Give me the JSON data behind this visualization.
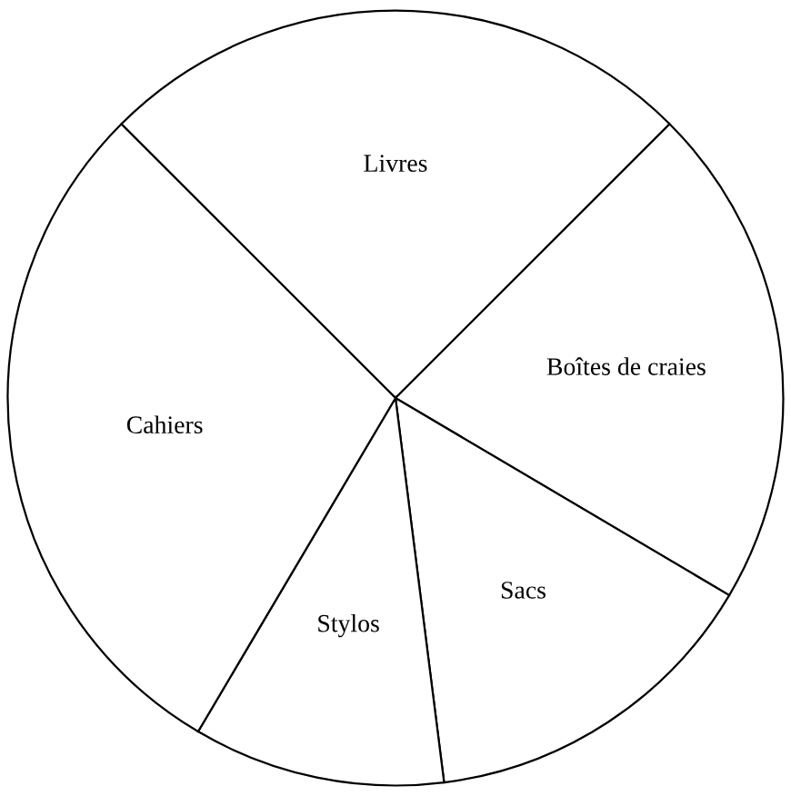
{
  "chart_data": {
    "type": "pie",
    "categories": [
      "Livres",
      "Boîtes de craies",
      "Sacs",
      "Stylos",
      "Cahiers"
    ],
    "values": [
      25,
      21,
      14.5,
      10.5,
      29
    ],
    "colors": [
      "#ffffff",
      "#ffffff",
      "#ffffff",
      "#ffffff",
      "#ffffff"
    ],
    "legend": false
  }
}
